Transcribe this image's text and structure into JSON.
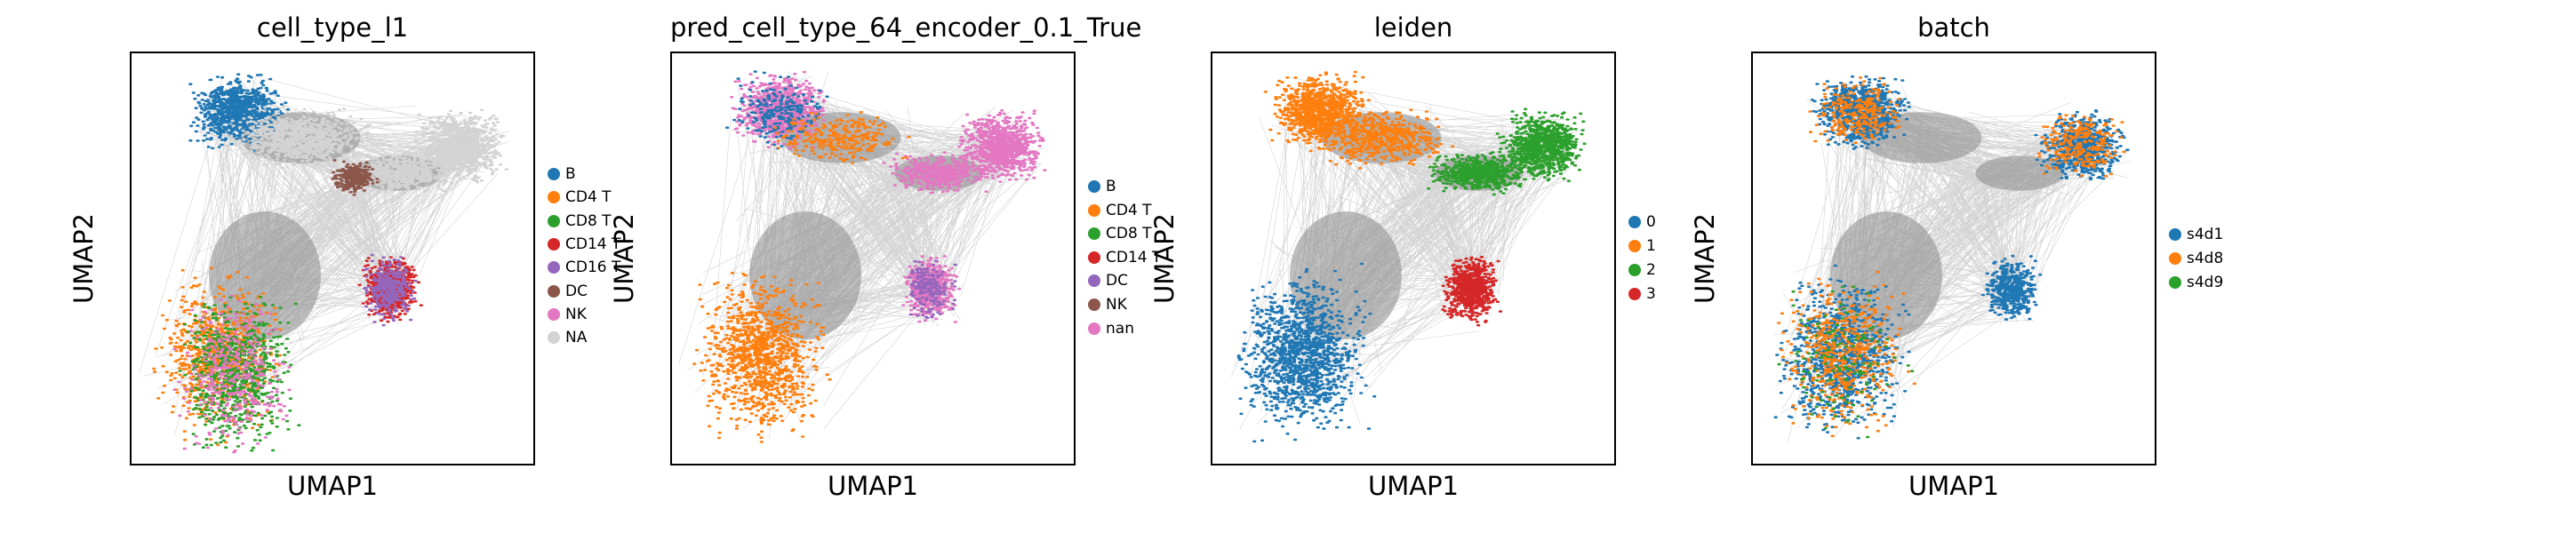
{
  "charts": [
    {
      "title": "cell_type_l1",
      "xlabel": "UMAP1",
      "ylabel": "UMAP2",
      "legend": [
        {
          "label": "B",
          "color": "#1f77b4"
        },
        {
          "label": "CD4 T",
          "color": "#ff7f0e"
        },
        {
          "label": "CD8 T",
          "color": "#2ca02c"
        },
        {
          "label": "CD14 T",
          "color": "#d62728"
        },
        {
          "label": "CD16 T",
          "color": "#9467bd"
        },
        {
          "label": "DC",
          "color": "#8c564b"
        },
        {
          "label": "NK",
          "color": "#e377c2"
        },
        {
          "label": "NA",
          "color": "#d3d3d3"
        }
      ]
    },
    {
      "title": "pred_cell_type_64_encoder_0.1_True",
      "xlabel": "UMAP1",
      "ylabel": "UMAP2",
      "legend": [
        {
          "label": "B",
          "color": "#1f77b4"
        },
        {
          "label": "CD4 T",
          "color": "#ff7f0e"
        },
        {
          "label": "CD8 T",
          "color": "#2ca02c"
        },
        {
          "label": "CD14 T",
          "color": "#d62728"
        },
        {
          "label": "DC",
          "color": "#9467bd"
        },
        {
          "label": "NK",
          "color": "#8c564b"
        },
        {
          "label": "nan",
          "color": "#e377c2"
        }
      ]
    },
    {
      "title": "leiden",
      "xlabel": "UMAP1",
      "ylabel": "UMAP2",
      "legend": [
        {
          "label": "0",
          "color": "#1f77b4"
        },
        {
          "label": "1",
          "color": "#ff7f0e"
        },
        {
          "label": "2",
          "color": "#2ca02c"
        },
        {
          "label": "3",
          "color": "#d62728"
        }
      ]
    },
    {
      "title": "batch",
      "xlabel": "UMAP1",
      "ylabel": "UMAP2",
      "legend": [
        {
          "label": "s4d1",
          "color": "#1f77b4"
        },
        {
          "label": "s4d8",
          "color": "#ff7f0e"
        },
        {
          "label": "s4d9",
          "color": "#2ca02c"
        }
      ]
    }
  ],
  "chart_data": [
    {
      "type": "scatter",
      "title": "cell_type_l1",
      "xlabel": "UMAP1",
      "ylabel": "UMAP2",
      "ticks": "none",
      "grid": false,
      "legend_position": "right",
      "edges_color": "#808080",
      "clusters": [
        {
          "label": "B",
          "color": "#1f77b4"
        },
        {
          "label": "NA",
          "color": "#d3d3d3"
        },
        {
          "label": "CD4 T",
          "color": "#ff7f0e"
        },
        {
          "label": "CD8 T",
          "color": "#2ca02c"
        },
        {
          "label": "NK",
          "color": "#e377c2"
        },
        {
          "label": "CD14 T",
          "color": "#d62728"
        },
        {
          "label": "CD16 T",
          "color": "#9467bd"
        },
        {
          "label": "DC",
          "color": "#8c564b"
        }
      ]
    },
    {
      "type": "scatter",
      "title": "pred_cell_type_64_encoder_0.1_True",
      "xlabel": "UMAP1",
      "ylabel": "UMAP2",
      "ticks": "none",
      "grid": false,
      "legend_position": "right",
      "edges_color": "#808080",
      "clusters": [
        {
          "label": "nan",
          "color": "#e377c2"
        },
        {
          "label": "B",
          "color": "#1f77b4"
        },
        {
          "label": "CD4 T",
          "color": "#ff7f0e"
        },
        {
          "label": "DC",
          "color": "#9467bd"
        },
        {
          "label": "CD14 T",
          "color": "#d62728"
        }
      ]
    },
    {
      "type": "scatter",
      "title": "leiden",
      "xlabel": "UMAP1",
      "ylabel": "UMAP2",
      "ticks": "none",
      "grid": false,
      "legend_position": "right",
      "edges_color": "#808080",
      "clusters": [
        {
          "label": "0",
          "color": "#1f77b4"
        },
        {
          "label": "1",
          "color": "#ff7f0e"
        },
        {
          "label": "2",
          "color": "#2ca02c"
        },
        {
          "label": "3",
          "color": "#d62728"
        }
      ]
    },
    {
      "type": "scatter",
      "title": "batch",
      "xlabel": "UMAP1",
      "ylabel": "UMAP2",
      "ticks": "none",
      "grid": false,
      "legend_position": "right",
      "edges_color": "#808080",
      "clusters": [
        {
          "label": "s4d1",
          "color": "#1f77b4"
        },
        {
          "label": "s4d8",
          "color": "#ff7f0e"
        },
        {
          "label": "s4d9",
          "color": "#2ca02c"
        }
      ]
    }
  ]
}
